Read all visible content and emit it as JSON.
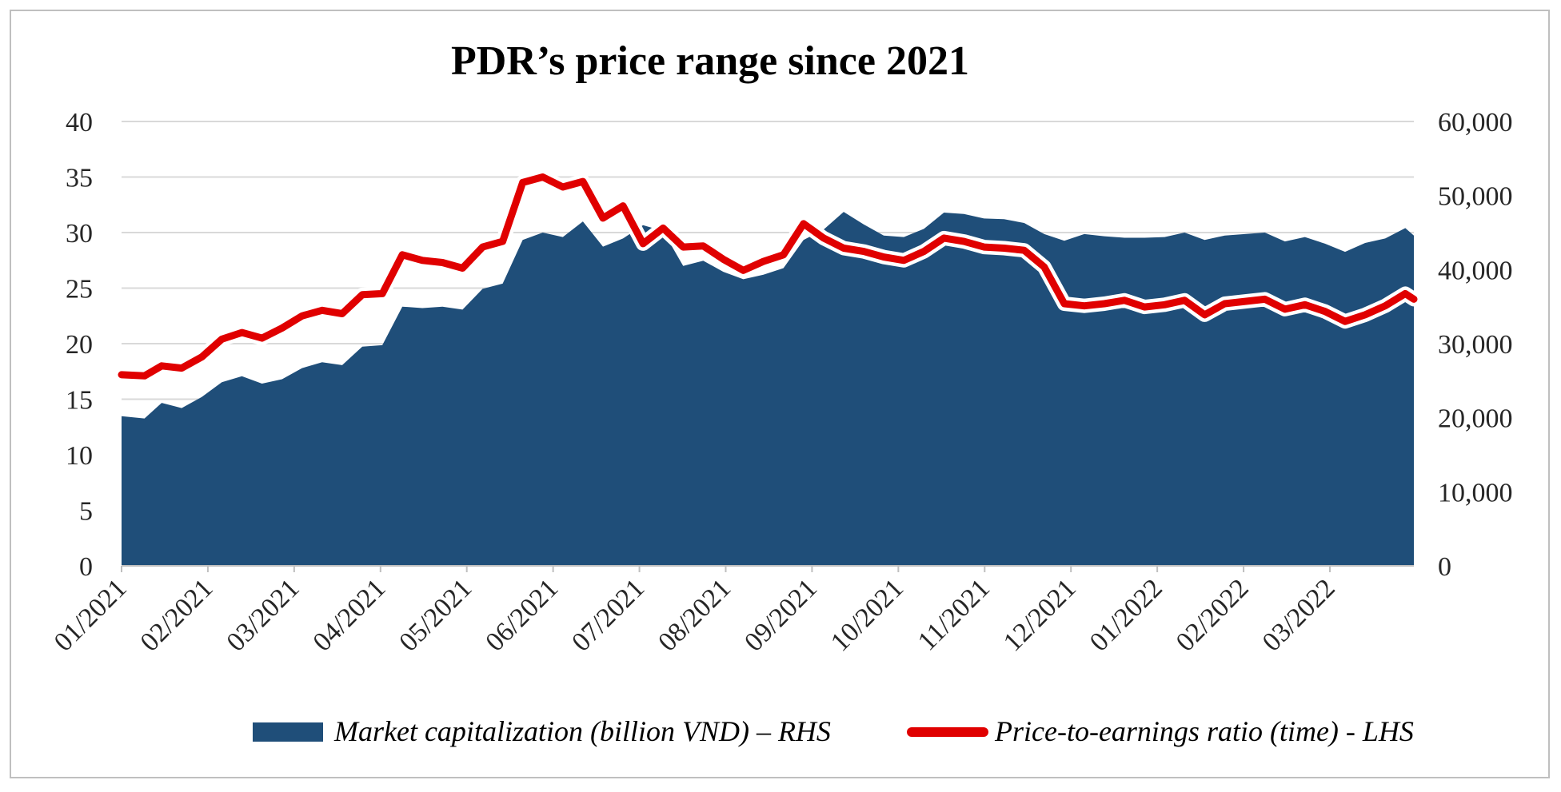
{
  "chart_data": {
    "type": "area",
    "title": "PDR’s price range since 2021",
    "x_tick_labels": [
      "01/2021",
      "02/2021",
      "03/2021",
      "04/2021",
      "05/2021",
      "06/2021",
      "07/2021",
      "08/2021",
      "09/2021",
      "10/2021",
      "11/2021",
      "12/2021",
      "01/2022",
      "02/2022",
      "03/2022"
    ],
    "y_left": {
      "ticks": [
        0,
        5,
        10,
        15,
        20,
        25,
        30,
        35,
        40
      ],
      "tick_labels": [
        "0",
        "5",
        "10",
        "15",
        "20",
        "25",
        "30",
        "35",
        "40"
      ],
      "range": [
        0,
        40
      ]
    },
    "y_right": {
      "ticks": [
        0,
        10000,
        20000,
        30000,
        40000,
        50000,
        60000
      ],
      "tick_labels": [
        "0",
        "10,000",
        "20,000",
        "30,000",
        "40,000",
        "50,000",
        "60,000"
      ],
      "range": [
        0,
        60000
      ]
    },
    "grid": "horizontal",
    "legend_position": "bottom",
    "x_range": [
      "2021-01-04",
      "2022-03-31"
    ],
    "series": [
      {
        "name": "Market capitalization (billion VND) – RHS",
        "type": "area",
        "axis": "right",
        "color": "#1f4e79",
        "x": [
          "2021-01-04",
          "2021-01-12",
          "2021-01-18",
          "2021-01-25",
          "2021-02-01",
          "2021-02-08",
          "2021-02-15",
          "2021-02-22",
          "2021-03-01",
          "2021-03-08",
          "2021-03-15",
          "2021-03-22",
          "2021-03-29",
          "2021-04-05",
          "2021-04-12",
          "2021-04-19",
          "2021-04-26",
          "2021-05-03",
          "2021-05-10",
          "2021-05-17",
          "2021-05-24",
          "2021-05-31",
          "2021-06-07",
          "2021-06-14",
          "2021-06-21",
          "2021-06-28",
          "2021-07-05",
          "2021-07-12",
          "2021-07-19",
          "2021-07-26",
          "2021-08-02",
          "2021-08-09",
          "2021-08-16",
          "2021-08-23",
          "2021-08-30",
          "2021-09-06",
          "2021-09-13",
          "2021-09-20",
          "2021-09-27",
          "2021-10-04",
          "2021-10-11",
          "2021-10-18",
          "2021-10-25",
          "2021-11-01",
          "2021-11-08",
          "2021-11-15",
          "2021-11-22",
          "2021-11-29",
          "2021-12-06",
          "2021-12-13",
          "2021-12-20",
          "2021-12-27",
          "2022-01-03",
          "2022-01-10",
          "2022-01-17",
          "2022-01-24",
          "2022-02-07",
          "2022-02-14",
          "2022-02-21",
          "2022-02-28",
          "2022-03-07",
          "2022-03-14",
          "2022-03-21",
          "2022-03-28",
          "2022-03-31"
        ],
        "values": [
          20200,
          19900,
          22000,
          21300,
          22800,
          24800,
          25600,
          24600,
          25200,
          26700,
          27500,
          27100,
          29600,
          29800,
          35000,
          34800,
          35000,
          34600,
          37400,
          38100,
          44000,
          45000,
          44400,
          46500,
          43100,
          44200,
          46000,
          45200,
          40500,
          41200,
          39700,
          38700,
          39300,
          40200,
          44000,
          45400,
          47800,
          46100,
          44600,
          44400,
          45500,
          47700,
          47500,
          46900,
          46800,
          46300,
          44800,
          43900,
          44800,
          44500,
          44300,
          44300,
          44400,
          45000,
          44000,
          44600,
          45000,
          43800,
          44400,
          43500,
          42400,
          43600,
          44200,
          45600,
          44600
        ]
      },
      {
        "name": "Price-to-earnings ratio (time) - LHS",
        "type": "line",
        "axis": "left",
        "color": "#e00000",
        "x": [
          "2021-01-04",
          "2021-01-12",
          "2021-01-18",
          "2021-01-25",
          "2021-02-01",
          "2021-02-08",
          "2021-02-15",
          "2021-02-22",
          "2021-03-01",
          "2021-03-08",
          "2021-03-15",
          "2021-03-22",
          "2021-03-29",
          "2021-04-05",
          "2021-04-12",
          "2021-04-19",
          "2021-04-26",
          "2021-05-03",
          "2021-05-10",
          "2021-05-17",
          "2021-05-24",
          "2021-05-31",
          "2021-06-07",
          "2021-06-14",
          "2021-06-21",
          "2021-06-28",
          "2021-07-05",
          "2021-07-12",
          "2021-07-19",
          "2021-07-26",
          "2021-08-02",
          "2021-08-09",
          "2021-08-16",
          "2021-08-23",
          "2021-08-30",
          "2021-09-06",
          "2021-09-13",
          "2021-09-20",
          "2021-09-27",
          "2021-10-04",
          "2021-10-11",
          "2021-10-18",
          "2021-10-25",
          "2021-11-01",
          "2021-11-08",
          "2021-11-15",
          "2021-11-22",
          "2021-11-29",
          "2021-12-06",
          "2021-12-13",
          "2021-12-20",
          "2021-12-27",
          "2022-01-03",
          "2022-01-10",
          "2022-01-17",
          "2022-01-24",
          "2022-02-07",
          "2022-02-14",
          "2022-02-21",
          "2022-02-28",
          "2022-03-07",
          "2022-03-14",
          "2022-03-21",
          "2022-03-28",
          "2022-03-31"
        ],
        "values": [
          17.2,
          17.1,
          18.0,
          17.8,
          18.8,
          20.4,
          21.0,
          20.5,
          21.4,
          22.5,
          23.0,
          22.7,
          24.4,
          24.5,
          28.0,
          27.5,
          27.3,
          26.8,
          28.7,
          29.2,
          34.5,
          35.0,
          34.1,
          34.6,
          31.3,
          32.4,
          29.0,
          30.4,
          28.7,
          28.8,
          27.6,
          26.6,
          27.4,
          28.0,
          30.8,
          29.5,
          28.6,
          28.3,
          27.8,
          27.5,
          28.3,
          29.5,
          29.2,
          28.7,
          28.6,
          28.4,
          26.9,
          23.6,
          23.4,
          23.6,
          23.9,
          23.3,
          23.5,
          23.9,
          22.6,
          23.6,
          24.0,
          23.1,
          23.5,
          22.9,
          22.0,
          22.6,
          23.4,
          24.5,
          24.0
        ]
      }
    ]
  }
}
